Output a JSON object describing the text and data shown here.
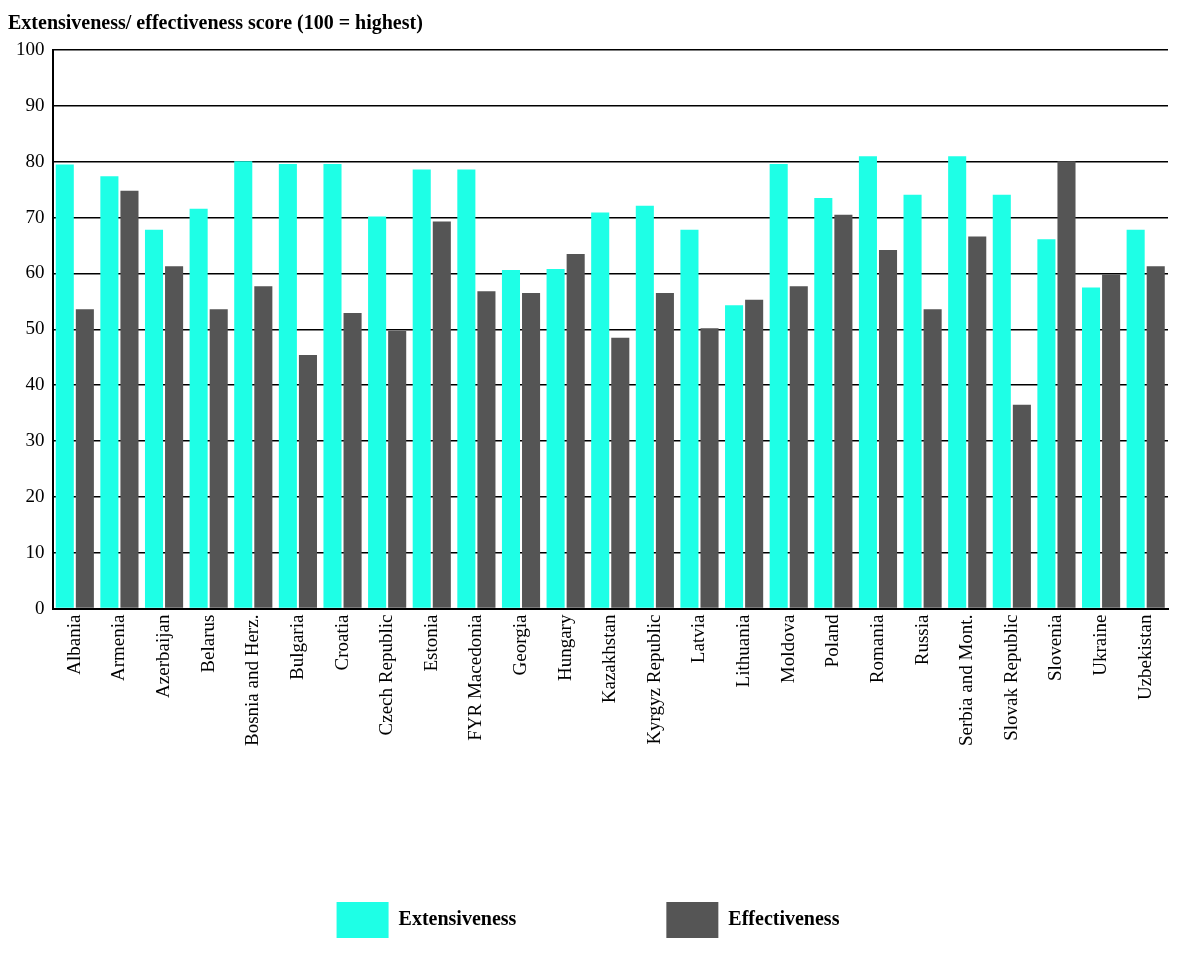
{
  "chart_data": {
    "type": "bar",
    "title": "Extensiveness/ effectiveness score (100 = highest)",
    "categories": [
      "Albania",
      "Armenia",
      "Azerbaijan",
      "Belarus",
      "Bosnia and Herz.",
      "Bulgaria",
      "Croatia",
      "Czech Republic",
      "Estonia",
      "FYR Macedonia",
      "Georgia",
      "Hungary",
      "Kazakhstan",
      "Kyrgyz Republic",
      "Latvia",
      "Lithuania",
      "Moldova",
      "Poland",
      "Romania",
      "Russia",
      "Serbia and Mont.",
      "Slovak Republic",
      "Slovenia",
      "Ukraine",
      "Uzbekistan"
    ],
    "series": [
      {
        "name": "Extensiveness",
        "color": "#1effe6",
        "values": [
          79.5,
          77.4,
          67.8,
          71.6,
          80.1,
          79.6,
          79.6,
          70.2,
          78.6,
          78.6,
          60.6,
          60.8,
          70.9,
          72.1,
          67.8,
          54.3,
          79.6,
          73.5,
          81,
          74.1,
          81,
          74.1,
          66.1,
          57.5,
          67.8
        ]
      },
      {
        "name": "Effectiveness",
        "color": "#555555",
        "values": [
          53.6,
          74.8,
          61.3,
          53.6,
          57.7,
          45.4,
          52.9,
          49.7,
          69.3,
          56.8,
          56.5,
          63.5,
          48.5,
          56.5,
          50.2,
          55.3,
          57.7,
          70.5,
          64.2,
          53.6,
          66.6,
          36.5,
          80.1,
          59.8,
          61.3
        ]
      }
    ],
    "ylim": [
      0,
      100
    ],
    "yticks": [
      0,
      10,
      20,
      30,
      40,
      50,
      60,
      70,
      80,
      90,
      100
    ],
    "grid": "y",
    "legend": "bottom"
  }
}
